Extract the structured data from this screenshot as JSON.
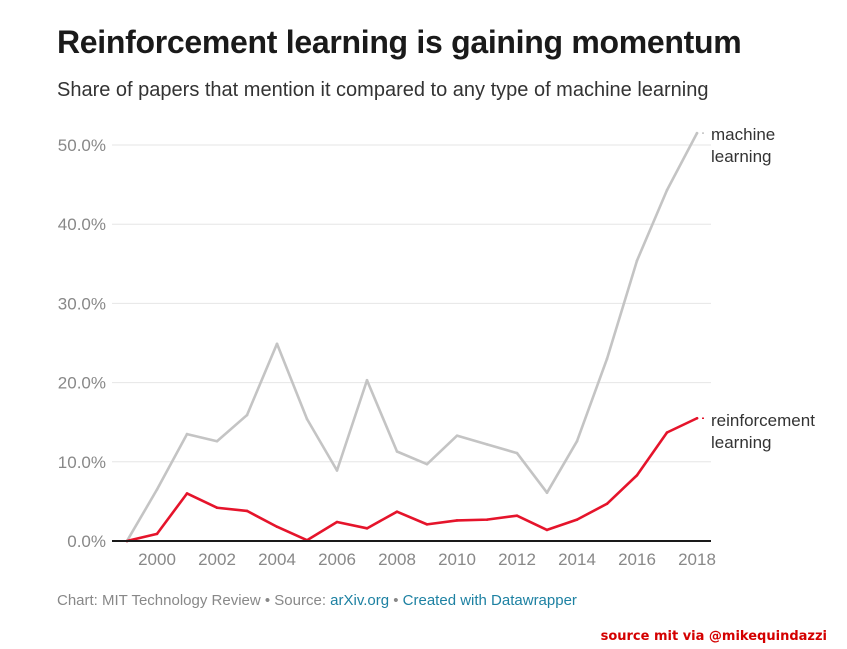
{
  "header": {
    "title": "Reinforcement learning is gaining momentum",
    "subtitle": "Share of papers that mention it compared to any type of machine learning"
  },
  "footer": {
    "prefix": "Chart: MIT Technology Review • Source: ",
    "source_link": "arXiv.org",
    "separator": " • ",
    "created_link": "Created with Datawrapper"
  },
  "credit": "source mit via @mikequindazzi",
  "colors": {
    "ml_line": "#c4c4c4",
    "rl_line": "#e5142b",
    "grid": "#e6e6e6",
    "baseline": "#1a1a1a",
    "link": "#1d81a2",
    "credit": "#d40000"
  },
  "chart_data": {
    "type": "line",
    "title": "Reinforcement learning is gaining momentum",
    "subtitle": "Share of papers that mention it compared to any type of machine learning",
    "xlabel": "",
    "ylabel": "",
    "x": [
      1999,
      2000,
      2001,
      2002,
      2003,
      2004,
      2005,
      2006,
      2007,
      2008,
      2009,
      2010,
      2011,
      2012,
      2013,
      2014,
      2015,
      2016,
      2017,
      2018
    ],
    "xlim": [
      1999,
      2018
    ],
    "ylim": [
      0,
      50
    ],
    "x_ticks": [
      2000,
      2002,
      2004,
      2006,
      2008,
      2010,
      2012,
      2014,
      2016,
      2018
    ],
    "x_tick_labels": [
      "2000",
      "2002",
      "2004",
      "2006",
      "2008",
      "2010",
      "2012",
      "2014",
      "2016",
      "2018"
    ],
    "y_ticks": [
      0,
      10,
      20,
      30,
      40,
      50
    ],
    "y_tick_labels": [
      "0.0%",
      "10.0%",
      "20.0%",
      "30.0%",
      "40.0%",
      "50.0%"
    ],
    "grid": true,
    "series": [
      {
        "name": "machine learning",
        "label_lines": [
          "machine",
          "learning"
        ],
        "values": [
          0,
          6.5,
          13.5,
          12.6,
          15.9,
          24.9,
          15.4,
          8.9,
          20.3,
          11.3,
          9.7,
          13.3,
          12.2,
          11.1,
          6.1,
          12.6,
          23.0,
          35.4,
          44.3,
          51.5
        ]
      },
      {
        "name": "reinforcement learning",
        "label_lines": [
          "reinforcement",
          "learning"
        ],
        "values": [
          0,
          0.9,
          6.0,
          4.2,
          3.8,
          1.8,
          0.1,
          2.4,
          1.6,
          3.7,
          2.1,
          2.6,
          2.7,
          3.2,
          1.4,
          2.7,
          4.7,
          8.3,
          13.7,
          15.5
        ]
      }
    ]
  }
}
